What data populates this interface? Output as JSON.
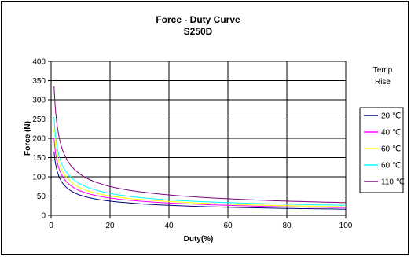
{
  "chart_data": {
    "type": "line",
    "title": "Force - Duty Curve",
    "subtitle": "S250D",
    "xlabel": "Duty(%)",
    "ylabel": "Force (N)",
    "xlim": [
      0,
      100
    ],
    "ylim": [
      0,
      400
    ],
    "xticks": [
      0,
      20,
      40,
      60,
      80,
      100
    ],
    "yticks": [
      0,
      50,
      100,
      150,
      200,
      250,
      300,
      350,
      400
    ],
    "grid": true,
    "legend_title": [
      "Temp",
      "Rise"
    ],
    "legend_position": "right",
    "x": [
      1,
      2,
      3,
      5,
      10,
      20,
      40,
      60,
      80,
      100
    ],
    "series": [
      {
        "name": "20 ℃",
        "color": "#000080",
        "values": [
          165,
          117,
          95,
          74,
          52,
          37,
          26,
          21,
          18,
          16
        ]
      },
      {
        "name": "40 ℃",
        "color": "#ff00ff",
        "values": [
          200,
          141,
          115,
          89,
          63,
          45,
          32,
          26,
          22,
          20
        ]
      },
      {
        "name": "60 ℃",
        "color": "#ffff00",
        "values": [
          225,
          159,
          130,
          101,
          71,
          50,
          36,
          29,
          25,
          22
        ]
      },
      {
        "name": "60 ℃",
        "color": "#00ffff",
        "values": [
          255,
          180,
          147,
          114,
          81,
          57,
          40,
          33,
          29,
          26
        ]
      },
      {
        "name": "110 ℃",
        "color": "#800080",
        "values": [
          335,
          237,
          193,
          150,
          106,
          75,
          53,
          43,
          37,
          33
        ]
      }
    ]
  }
}
